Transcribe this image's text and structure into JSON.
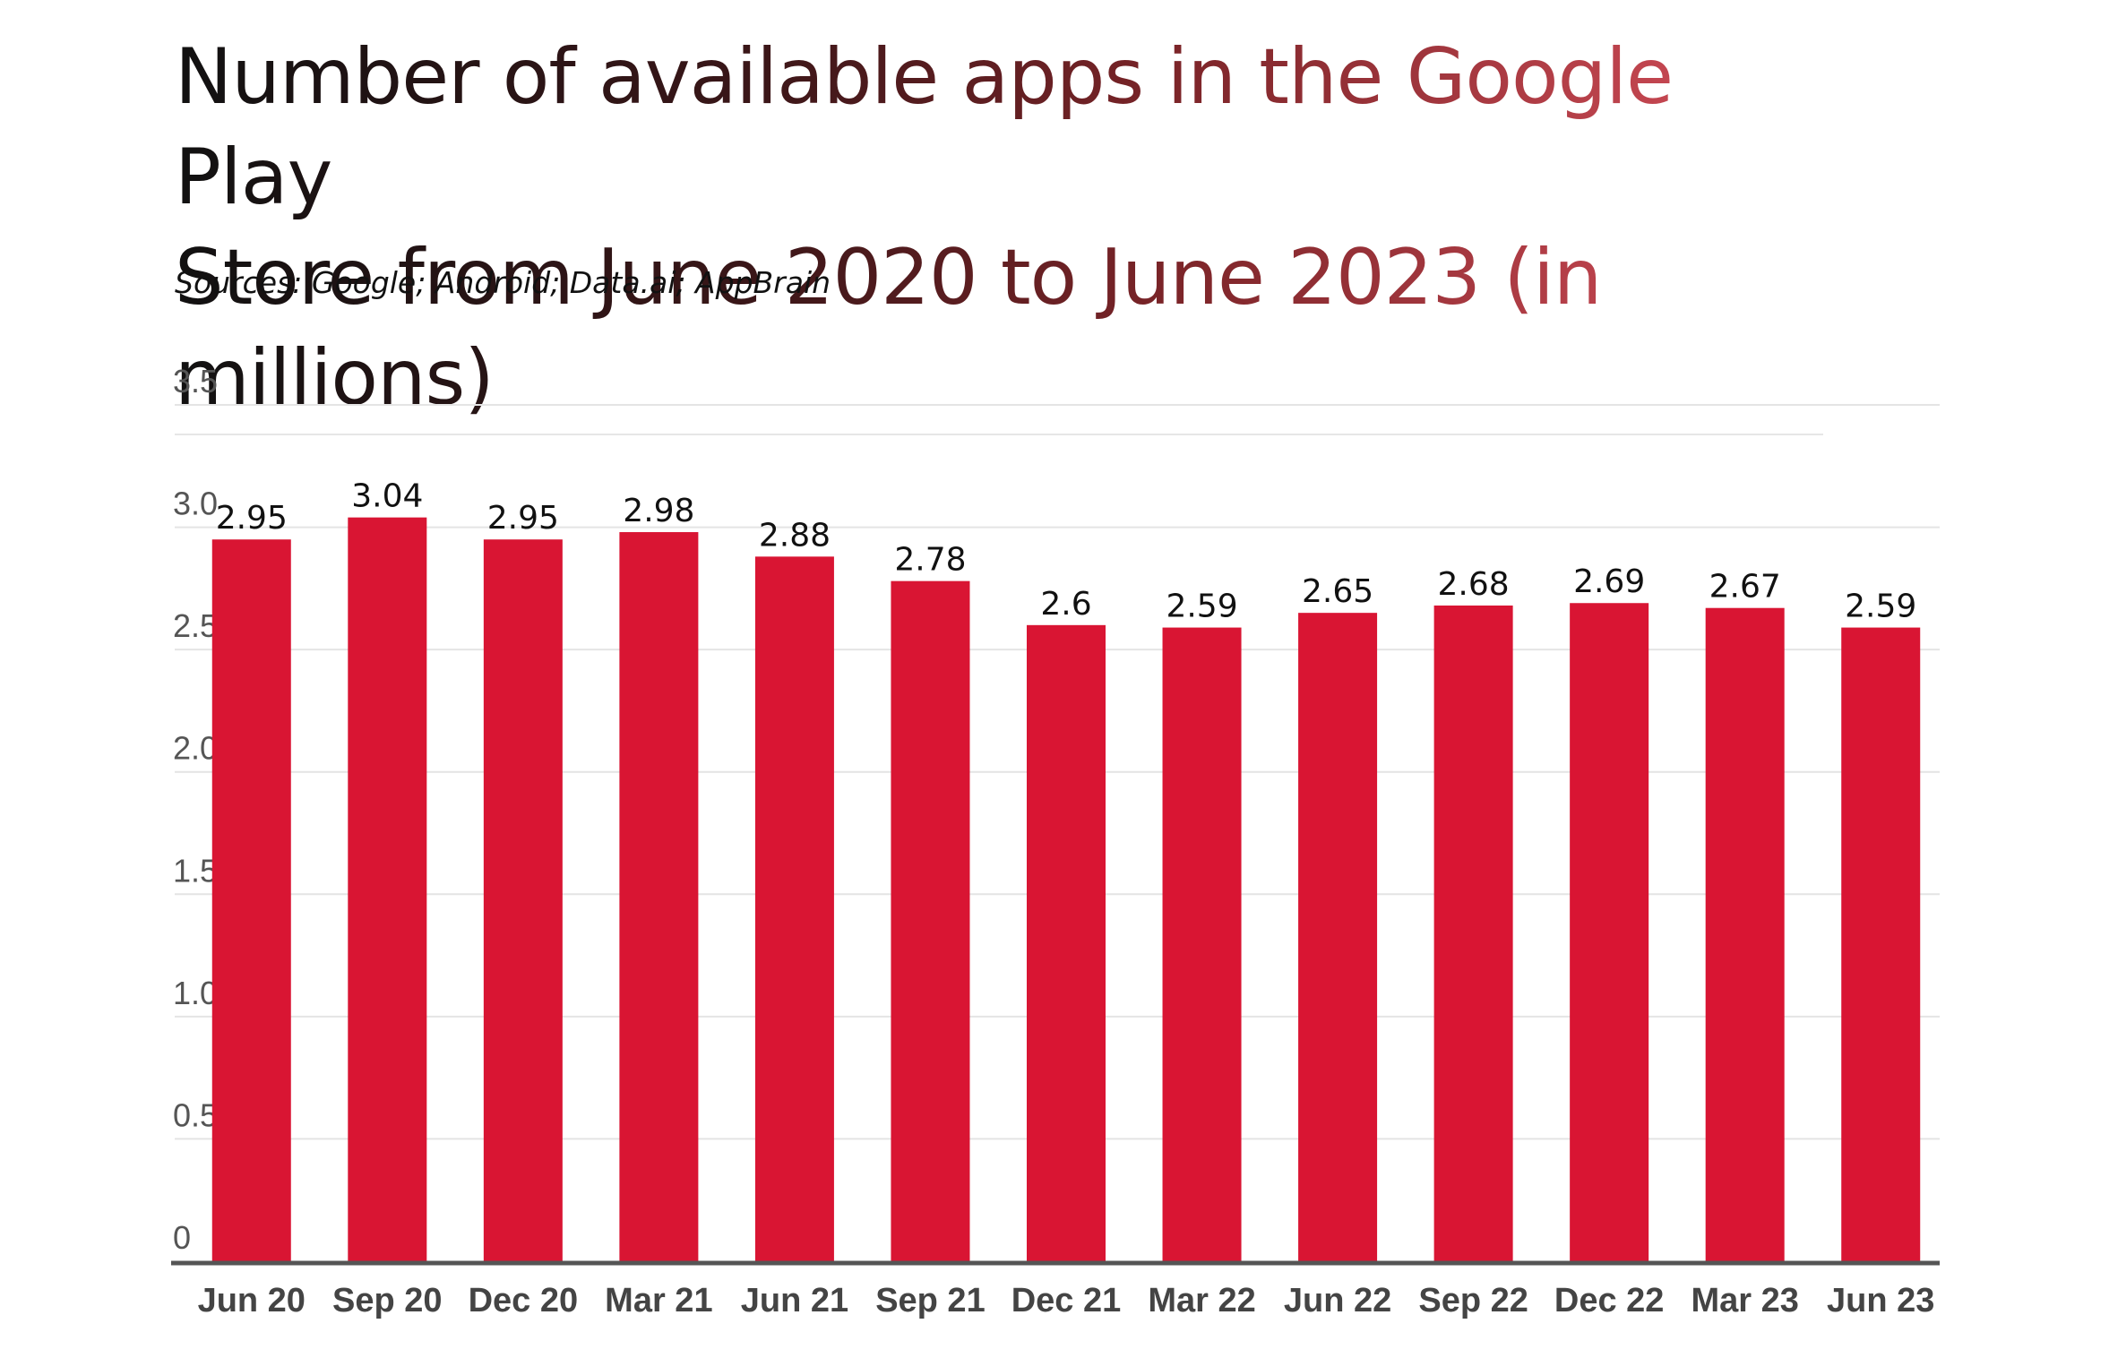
{
  "title_line1": "Number of available apps in the Google Play",
  "title_line2": "Store from June 2020 to June 2023 (in millions)",
  "source": "Sources: Google; Android; Data.ai; AppBrain",
  "colors": {
    "bar": "#d91533",
    "grid": "#e4e4e4",
    "axis": "#555555"
  },
  "chart_data": {
    "type": "bar",
    "title": "Number of available apps in the Google Play Store from June 2020 to June 2023 (in millions)",
    "xlabel": "",
    "ylabel": "",
    "ylim": [
      0,
      3.5
    ],
    "yticks": [
      "0",
      "0.5",
      "1.0",
      "1.5",
      "2.0",
      "2.5",
      "3.0",
      "3.5"
    ],
    "yticks_values": [
      0,
      0.5,
      1.0,
      1.5,
      2.0,
      2.5,
      3.0,
      3.5
    ],
    "categories": [
      "Jun 20",
      "Sep 20",
      "Dec 20",
      "Mar 21",
      "Jun 21",
      "Sep 21",
      "Dec 21",
      "Mar 22",
      "Jun 22",
      "Sep 22",
      "Dec 22",
      "Mar 23",
      "Jun 23"
    ],
    "values": [
      2.95,
      3.04,
      2.95,
      2.98,
      2.88,
      2.78,
      2.6,
      2.59,
      2.65,
      2.68,
      2.69,
      2.67,
      2.59
    ],
    "value_labels": [
      "2.95",
      "3.04",
      "2.95",
      "2.98",
      "2.88",
      "2.78",
      "2.6",
      "2.59",
      "2.65",
      "2.68",
      "2.69",
      "2.67",
      "2.59"
    ]
  }
}
